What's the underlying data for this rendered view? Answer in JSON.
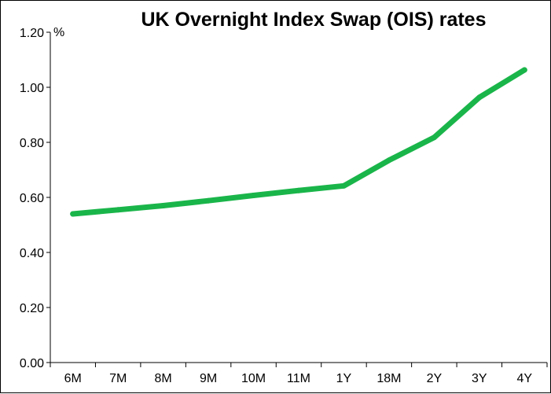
{
  "chart_data": {
    "type": "line",
    "title": "UK Overnight Index Swap (OIS) rates",
    "xlabel": "",
    "ylabel": "%",
    "categories": [
      "6M",
      "7M",
      "8M",
      "9M",
      "10M",
      "11M",
      "1Y",
      "18M",
      "2Y",
      "3Y",
      "4Y"
    ],
    "y_ticks": [
      "0.00",
      "0.20",
      "0.40",
      "0.60",
      "0.80",
      "1.00",
      "1.20"
    ],
    "ylim": [
      0,
      1.2
    ],
    "grid": false,
    "series": [
      {
        "values": [
          0.54,
          0.555,
          0.57,
          0.588,
          0.607,
          0.625,
          0.642,
          0.735,
          0.818,
          0.963,
          1.063
        ],
        "color": "#1ab54a"
      }
    ]
  }
}
